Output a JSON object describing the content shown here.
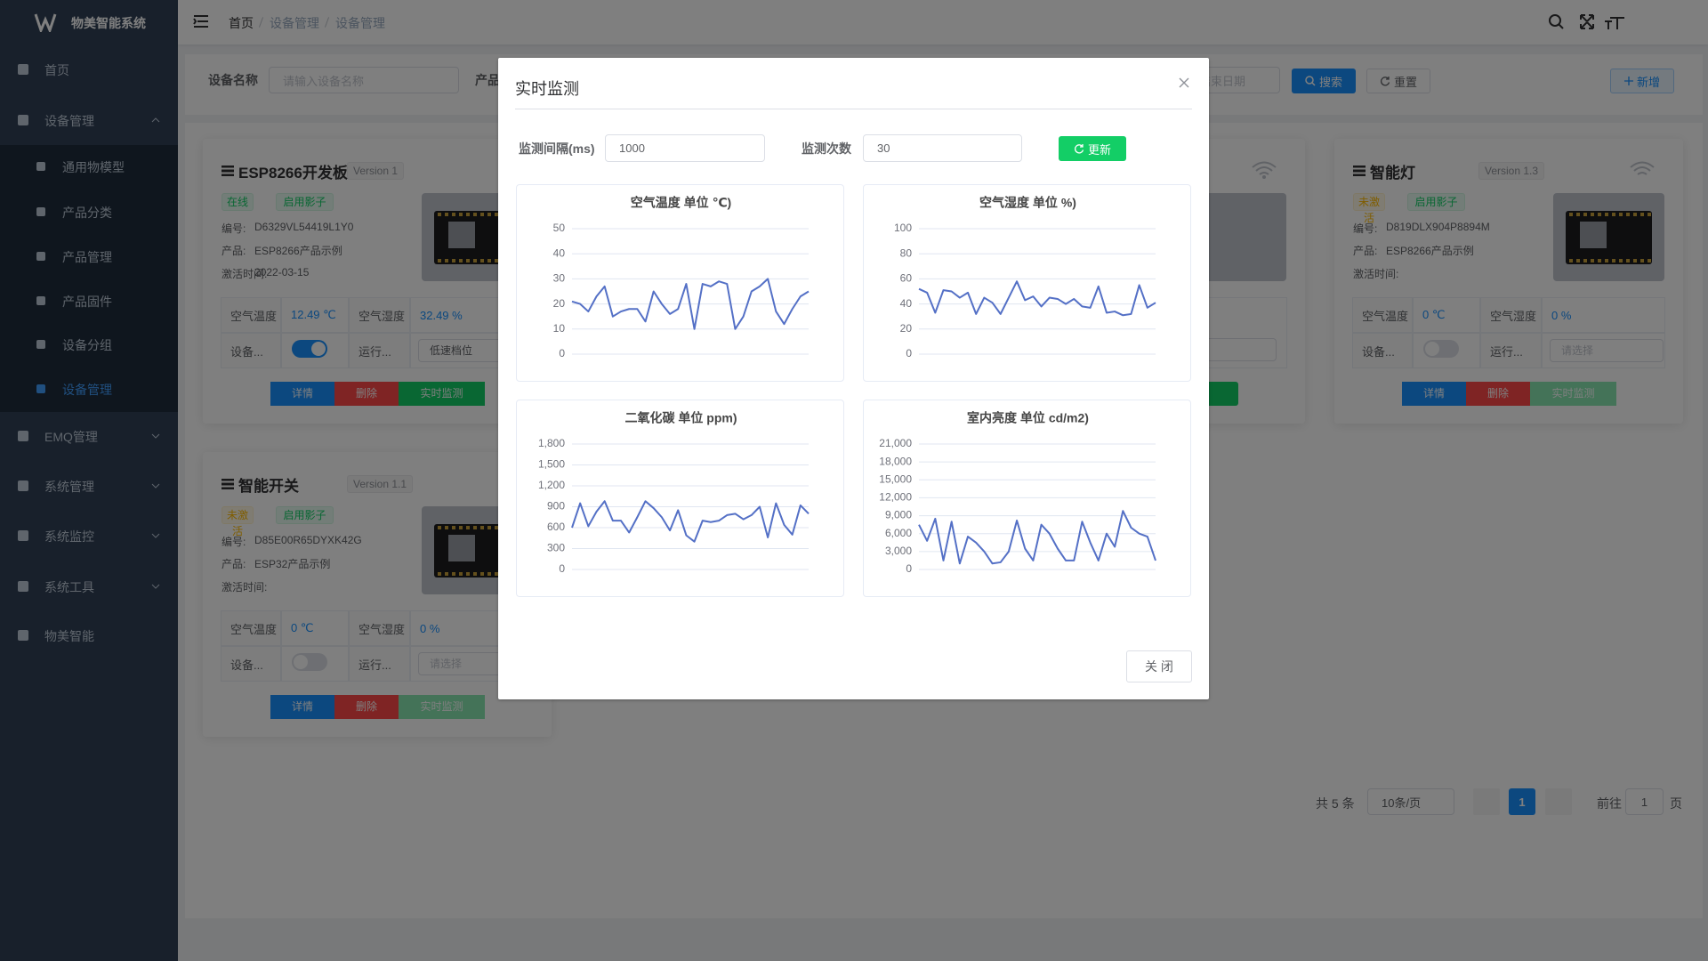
{
  "sidebar": {
    "brand": "物美智能系统",
    "menu": [
      {
        "label": "首页"
      },
      {
        "label": "设备管理",
        "children": [
          "通用物模型",
          "产品分类",
          "产品管理",
          "产品固件",
          "设备分组",
          "设备管理"
        ]
      },
      {
        "label": "EMQ管理"
      },
      {
        "label": "系统管理"
      },
      {
        "label": "系统监控"
      },
      {
        "label": "系统工具"
      },
      {
        "label": "物美智能"
      }
    ]
  },
  "breadcrumb": [
    "首页",
    "设备管理",
    "设备管理"
  ],
  "search": {
    "device_name_label": "设备名称",
    "device_name_placeholder": "请输入设备名称",
    "product_label": "产品",
    "end_date_placeholder": "结束日期",
    "search_button": "搜索",
    "reset_button": "重置",
    "add_button": "新增"
  },
  "cards": [
    {
      "title": "ESP8266开发板",
      "version": "Version 1",
      "status": "在线",
      "status_tag": "success",
      "shadow": "启用影子",
      "serial_label": "编号:",
      "serial": "D6329VL54419L1Y0",
      "product_label": "产品:",
      "product": "ESP8266产品示例",
      "activated_label": "激活时间:",
      "activated": "2022-03-15",
      "temp_label": "空气温度",
      "temp": "12.49 ℃",
      "humidity_label": "空气湿度",
      "humidity": "32.49 %",
      "switch_label": "设备...",
      "switch_on": true,
      "mode_label": "运行...",
      "mode": "低速档位",
      "detail": "详情",
      "delete": "删除",
      "monitor": "实时监测"
    },
    {
      "title": "智能灯",
      "version": "Version 1.3",
      "status": "未激活",
      "status_tag": "warning",
      "shadow": "启用影子",
      "serial_label": "编号:",
      "serial": "D819DLX904P8894M",
      "product_label": "产品:",
      "product": "ESP8266产品示例",
      "activated_label": "激活时间:",
      "temp_label": "空气温度",
      "temp": "0 ℃",
      "humidity_label": "空气湿度",
      "humidity": "0 %",
      "switch_label": "设备...",
      "switch_on": false,
      "mode_label": "运行...",
      "mode_placeholder": "请选择",
      "detail": "详情",
      "delete": "删除",
      "monitor": "实时监测"
    },
    {
      "title": "智能开关",
      "version": "Version 1.1",
      "status": "未激活",
      "status_tag": "warning",
      "shadow": "启用影子",
      "serial_label": "编号:",
      "serial": "D85E00R65DYXK42G",
      "product_label": "产品:",
      "product": "ESP32产品示例",
      "activated_label": "激活时间:",
      "temp_label": "空气温度",
      "temp": "0 ℃",
      "humidity_label": "空气湿度",
      "humidity": "0 %",
      "switch_label": "设备...",
      "switch_on": false,
      "mode_label": "运行...",
      "mode_placeholder": "请选择",
      "detail": "详情",
      "delete": "删除",
      "monitor": "实时监测"
    }
  ],
  "pagination": {
    "total": "共 5 条",
    "page_size": "10条/页",
    "current": "1",
    "goto": "前往",
    "goto_value": "1",
    "page_unit": "页"
  },
  "dialog": {
    "title": "实时监测",
    "interval_label": "监测间隔(ms)",
    "interval_value": "1000",
    "count_label": "监测次数",
    "count_value": "30",
    "refresh": "更新",
    "close": "关 闭"
  },
  "chart_data": [
    {
      "type": "line",
      "title": "空气温度 单位 ℃)",
      "color": "#5470c6",
      "grid": true,
      "ylim": [
        0,
        50
      ],
      "yticks": [
        0,
        10,
        20,
        30,
        40,
        50
      ],
      "values": [
        21,
        20,
        17,
        23,
        27,
        15,
        17,
        18,
        18,
        13,
        25,
        20,
        16,
        18,
        28,
        10,
        28,
        27,
        29,
        28,
        10,
        15,
        25,
        27,
        30,
        17,
        12,
        18,
        23,
        25
      ]
    },
    {
      "type": "line",
      "title": "空气湿度 单位 %)",
      "color": "#5470c6",
      "grid": true,
      "ylim": [
        0,
        100
      ],
      "yticks": [
        0,
        20,
        40,
        60,
        80,
        100
      ],
      "values": [
        52,
        49,
        33,
        51,
        50,
        45,
        49,
        32,
        45,
        41,
        32,
        45,
        58,
        43,
        46,
        38,
        45,
        44,
        40,
        44,
        38,
        37,
        54,
        33,
        34,
        31,
        32,
        55,
        37,
        41
      ]
    },
    {
      "type": "line",
      "title": "二氧化碳 单位 ppm)",
      "color": "#5470c6",
      "grid": true,
      "ylim": [
        0,
        1800
      ],
      "yticks": [
        0,
        300,
        600,
        900,
        {
          "value": 1200,
          "label": "1,200"
        },
        {
          "value": 1500,
          "label": "1,500"
        },
        {
          "value": 1800,
          "label": "1,800"
        }
      ],
      "values": [
        600,
        950,
        620,
        830,
        980,
        700,
        700,
        530,
        750,
        980,
        880,
        750,
        560,
        850,
        490,
        400,
        700,
        680,
        700,
        780,
        800,
        720,
        780,
        900,
        460,
        950,
        640,
        500,
        920,
        800
      ]
    },
    {
      "type": "line",
      "title": "室内亮度 单位 cd/m2)",
      "color": "#5470c6",
      "grid": true,
      "ylim": [
        0,
        21000
      ],
      "yticks": [
        0,
        {
          "value": 3000,
          "label": "3,000"
        },
        {
          "value": 6000,
          "label": "6,000"
        },
        {
          "value": 9000,
          "label": "9,000"
        },
        {
          "value": 12000,
          "label": "12,000"
        },
        {
          "value": 15000,
          "label": "15,000"
        },
        {
          "value": 18000,
          "label": "18,000"
        },
        {
          "value": 21000,
          "label": "21,000"
        }
      ],
      "values": [
        7500,
        4800,
        8500,
        1500,
        8000,
        1000,
        5500,
        4500,
        3000,
        1000,
        1200,
        3000,
        8200,
        3500,
        1500,
        7500,
        6000,
        3500,
        1500,
        1500,
        8000,
        4500,
        1500,
        6000,
        3800,
        9800,
        7000,
        6000,
        5500,
        1500
      ]
    }
  ]
}
